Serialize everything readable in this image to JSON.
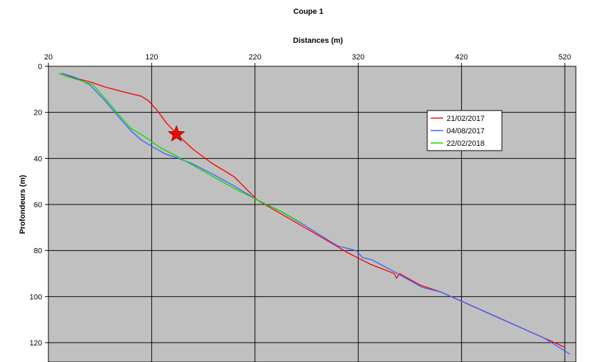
{
  "chart_data": {
    "type": "line",
    "title": "Coupe 1",
    "xlabel": "Distances (m)",
    "ylabel": "Profondeurs (m)",
    "xaxis_position": "top",
    "yaxis_inverted": true,
    "xlim": [
      20,
      530
    ],
    "ylim": [
      0,
      129
    ],
    "xticks": [
      20,
      120,
      220,
      320,
      420,
      520
    ],
    "yticks": [
      0,
      20,
      40,
      60,
      80,
      100,
      120
    ],
    "grid": true,
    "plot_background": "#c0c0c0",
    "legend_position": "right",
    "series": [
      {
        "name": "21/02/2017",
        "color": "#ff0000",
        "points": [
          [
            33,
            3
          ],
          [
            45,
            5
          ],
          [
            62,
            7
          ],
          [
            75,
            9
          ],
          [
            92,
            11
          ],
          [
            110,
            13
          ],
          [
            117,
            15
          ],
          [
            125,
            19
          ],
          [
            135,
            25
          ],
          [
            148,
            31
          ],
          [
            160,
            36
          ],
          [
            178,
            42
          ],
          [
            200,
            48
          ],
          [
            222,
            58
          ],
          [
            245,
            64
          ],
          [
            272,
            71
          ],
          [
            295,
            77
          ],
          [
            310,
            81
          ],
          [
            332,
            86
          ],
          [
            355,
            90
          ],
          [
            357,
            92
          ],
          [
            360,
            90
          ],
          [
            380,
            95
          ],
          [
            400,
            98
          ],
          [
            430,
            104
          ],
          [
            460,
            110
          ],
          [
            480,
            114
          ],
          [
            510,
            120
          ],
          [
            520,
            122
          ]
        ]
      },
      {
        "name": "04/08/2017",
        "color": "#4060ff",
        "points": [
          [
            33,
            3
          ],
          [
            47,
            5
          ],
          [
            60,
            8
          ],
          [
            75,
            15
          ],
          [
            90,
            23
          ],
          [
            100,
            28
          ],
          [
            110,
            32
          ],
          [
            121,
            35
          ],
          [
            133,
            38
          ],
          [
            146,
            40
          ],
          [
            158,
            42
          ],
          [
            180,
            47
          ],
          [
            200,
            52
          ],
          [
            222,
            58
          ],
          [
            245,
            63
          ],
          [
            268,
            69
          ],
          [
            282,
            73
          ],
          [
            300,
            78
          ],
          [
            318,
            80
          ],
          [
            324,
            83
          ],
          [
            333,
            84
          ],
          [
            350,
            88
          ],
          [
            370,
            93
          ],
          [
            382,
            96
          ],
          [
            400,
            98
          ],
          [
            420,
            102
          ],
          [
            440,
            106
          ],
          [
            470,
            112
          ],
          [
            500,
            118
          ],
          [
            525,
            125
          ]
        ]
      },
      {
        "name": "22/02/2018",
        "color": "#00e000",
        "points": [
          [
            30,
            3
          ],
          [
            35,
            4
          ],
          [
            50,
            6
          ],
          [
            63,
            8
          ],
          [
            75,
            14
          ],
          [
            90,
            22
          ],
          [
            100,
            27
          ],
          [
            115,
            31
          ],
          [
            127,
            35
          ],
          [
            140,
            38
          ],
          [
            148,
            40
          ],
          [
            160,
            43
          ],
          [
            180,
            48
          ],
          [
            200,
            53
          ],
          [
            222,
            58
          ],
          [
            245,
            63
          ],
          [
            265,
            68
          ]
        ]
      }
    ],
    "annotations": [
      {
        "type": "star",
        "color": "#ff0000",
        "x": 144,
        "y": 29.5
      }
    ]
  }
}
